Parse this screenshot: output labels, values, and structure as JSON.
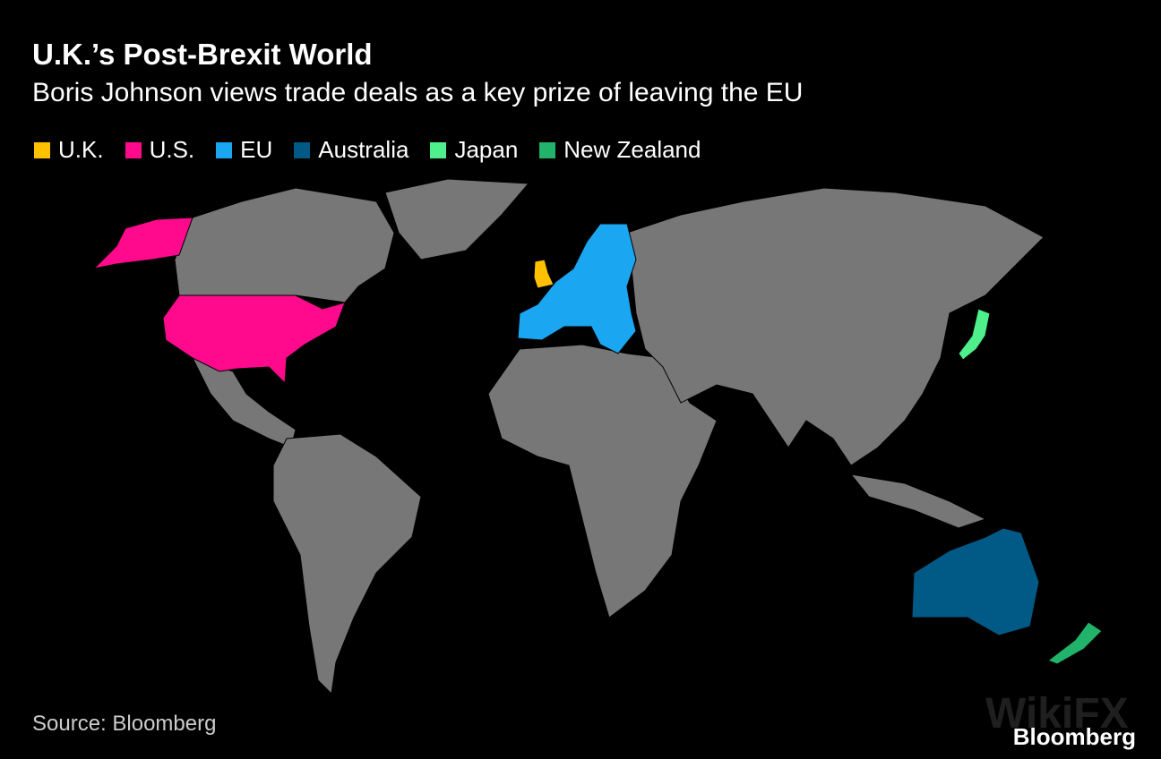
{
  "header": {
    "title": "U.K.’s Post-Brexit World",
    "subtitle": "Boris Johnson views trade deals as a key prize of leaving the EU"
  },
  "legend": {
    "items": [
      {
        "label": "U.K.",
        "color": "#ffc000"
      },
      {
        "label": "U.S.",
        "color": "#ff0a8c"
      },
      {
        "label": "EU",
        "color": "#1aa6f0"
      },
      {
        "label": "Australia",
        "color": "#005a85"
      },
      {
        "label": "Japan",
        "color": "#4ff08c"
      },
      {
        "label": "New Zealand",
        "color": "#22b36a"
      }
    ]
  },
  "footer": {
    "source": "Source: Bloomberg",
    "brand": "Bloomberg"
  },
  "watermark": "WikiFX"
}
